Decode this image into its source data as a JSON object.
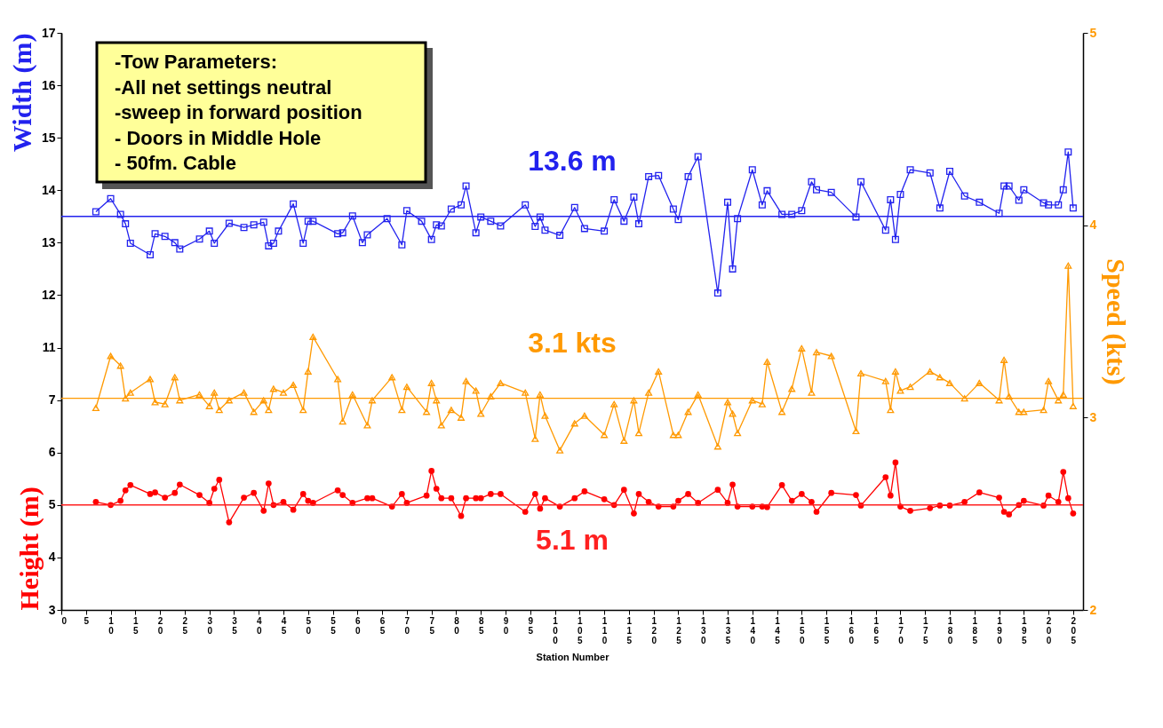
{
  "chart_data": {
    "type": "line",
    "xlabel": "Station Number",
    "ylabel": "Height (m)",
    "y2label": "Speed (kts)",
    "y3label": "Width (m)",
    "xlim": [
      0,
      207
    ],
    "xticks": [
      0,
      5,
      10,
      15,
      20,
      25,
      30,
      35,
      40,
      45,
      50,
      55,
      60,
      65,
      70,
      75,
      80,
      85,
      90,
      95,
      100,
      105,
      110,
      115,
      120,
      125,
      130,
      135,
      140,
      145,
      150,
      155,
      160,
      165,
      170,
      175,
      180,
      185,
      190,
      195,
      200,
      205
    ],
    "ylim": [
      3,
      14
    ],
    "yticks": [
      3,
      4,
      5,
      6,
      7
    ],
    "y2lim": [
      2,
      5
    ],
    "y2ticks": [
      2,
      3,
      4,
      5
    ],
    "y3lim": [
      6,
      17
    ],
    "y3ticks": [
      11,
      12,
      13,
      14,
      15,
      16,
      17
    ],
    "series": [
      {
        "axis": "y3",
        "color": "#2222ee",
        "marker": "square",
        "x": [
          7,
          10,
          12,
          13,
          14,
          18,
          19,
          21,
          23,
          24,
          28,
          30,
          31,
          34,
          37,
          39,
          41,
          42,
          43,
          44,
          47,
          49,
          50,
          51,
          56,
          57,
          59,
          61,
          62,
          66,
          69,
          70,
          73,
          75,
          76,
          77,
          79,
          81,
          82,
          84,
          85,
          87,
          89,
          94,
          96,
          97,
          98,
          101,
          104,
          106,
          110,
          112,
          114,
          116,
          117,
          119,
          121,
          124,
          125,
          127,
          129,
          133,
          135,
          136,
          137,
          140,
          142,
          143,
          146,
          148,
          150,
          152,
          153,
          156,
          161,
          162,
          167,
          168,
          169,
          170,
          172,
          176,
          178,
          180,
          183,
          186,
          190,
          191,
          192,
          194,
          195,
          199,
          200,
          202,
          203,
          204,
          205
        ],
        "values": [
          13.59,
          13.84,
          13.54,
          13.36,
          12.99,
          12.77,
          13.17,
          13.12,
          13.0,
          12.88,
          13.07,
          13.22,
          12.99,
          13.37,
          13.29,
          13.34,
          13.39,
          12.94,
          12.99,
          13.22,
          13.74,
          12.99,
          13.41,
          13.41,
          13.17,
          13.19,
          13.51,
          13.0,
          13.15,
          13.46,
          12.96,
          13.61,
          13.41,
          13.06,
          13.34,
          13.32,
          13.64,
          13.72,
          14.08,
          13.19,
          13.49,
          13.41,
          13.32,
          13.72,
          13.31,
          13.49,
          13.24,
          13.14,
          13.67,
          13.27,
          13.22,
          13.82,
          13.41,
          13.87,
          13.36,
          14.26,
          14.28,
          13.64,
          13.44,
          14.26,
          14.64,
          12.04,
          13.77,
          12.5,
          13.46,
          14.39,
          13.72,
          13.99,
          13.54,
          13.54,
          13.61,
          14.16,
          14.01,
          13.96,
          13.49,
          14.16,
          13.24,
          13.82,
          13.06,
          13.92,
          14.39,
          14.33,
          13.66,
          14.36,
          13.89,
          13.77,
          13.56,
          14.08,
          14.08,
          13.81,
          14.01,
          13.76,
          13.72,
          13.72,
          14.01,
          14.73,
          13.66
        ]
      },
      {
        "axis": "y2",
        "color": "#ff9900",
        "marker": "triangle",
        "x": [
          7,
          10,
          12,
          13,
          14,
          18,
          19,
          21,
          23,
          24,
          28,
          30,
          31,
          32,
          34,
          37,
          39,
          41,
          42,
          43,
          45,
          47,
          49,
          50,
          51,
          56,
          57,
          59,
          62,
          63,
          67,
          69,
          70,
          74,
          75,
          76,
          77,
          79,
          81,
          82,
          84,
          85,
          87,
          89,
          94,
          96,
          97,
          98,
          101,
          104,
          106,
          110,
          112,
          114,
          116,
          117,
          119,
          121,
          124,
          125,
          127,
          129,
          133,
          135,
          136,
          137,
          140,
          142,
          143,
          146,
          148,
          150,
          152,
          153,
          156,
          161,
          162,
          167,
          168,
          169,
          170,
          172,
          176,
          178,
          180,
          183,
          186,
          190,
          191,
          192,
          194,
          195,
          199,
          200,
          202,
          203,
          204,
          205
        ],
        "values": [
          3.05,
          3.32,
          3.27,
          3.1,
          3.13,
          3.2,
          3.08,
          3.07,
          3.21,
          3.09,
          3.12,
          3.06,
          3.13,
          3.04,
          3.09,
          3.13,
          3.03,
          3.09,
          3.04,
          3.15,
          3.13,
          3.17,
          3.04,
          3.24,
          3.42,
          3.2,
          2.98,
          3.12,
          2.96,
          3.09,
          3.21,
          3.04,
          3.16,
          3.03,
          3.18,
          3.09,
          2.96,
          3.04,
          3.0,
          3.19,
          3.14,
          3.02,
          3.11,
          3.18,
          3.13,
          2.89,
          3.12,
          3.01,
          2.83,
          2.97,
          3.01,
          2.91,
          3.07,
          2.88,
          3.09,
          2.92,
          3.13,
          3.24,
          2.91,
          2.91,
          3.03,
          3.12,
          2.85,
          3.08,
          3.02,
          2.92,
          3.09,
          3.07,
          3.29,
          3.03,
          3.15,
          3.36,
          3.13,
          3.34,
          3.32,
          2.93,
          3.23,
          3.19,
          3.04,
          3.24,
          3.14,
          3.16,
          3.24,
          3.21,
          3.18,
          3.1,
          3.18,
          3.09,
          3.3,
          3.11,
          3.03,
          3.03,
          3.04,
          3.19,
          3.09,
          3.12,
          3.79,
          3.06
        ]
      },
      {
        "axis": "y",
        "color": "#ff0000",
        "marker": "circle",
        "x": [
          7,
          10,
          12,
          13,
          14,
          18,
          19,
          21,
          23,
          24,
          28,
          30,
          31,
          32,
          34,
          37,
          39,
          41,
          42,
          43,
          45,
          47,
          49,
          50,
          51,
          56,
          57,
          59,
          62,
          63,
          67,
          69,
          70,
          74,
          75,
          76,
          77,
          79,
          81,
          82,
          84,
          85,
          87,
          89,
          94,
          96,
          97,
          98,
          101,
          104,
          106,
          110,
          112,
          114,
          116,
          117,
          119,
          121,
          124,
          125,
          127,
          129,
          133,
          135,
          136,
          137,
          140,
          142,
          143,
          146,
          148,
          150,
          152,
          153,
          156,
          161,
          162,
          167,
          168,
          169,
          170,
          172,
          176,
          178,
          180,
          183,
          186,
          190,
          191,
          192,
          194,
          195,
          199,
          200,
          202,
          203,
          204,
          205
        ],
        "values": [
          5.06,
          5.0,
          5.08,
          5.28,
          5.38,
          5.21,
          5.24,
          5.14,
          5.23,
          5.39,
          5.19,
          5.04,
          5.31,
          5.48,
          4.67,
          5.14,
          5.23,
          4.89,
          5.41,
          5.0,
          5.06,
          4.91,
          5.21,
          5.08,
          5.04,
          5.28,
          5.19,
          5.04,
          5.13,
          5.13,
          4.97,
          5.21,
          5.04,
          5.18,
          5.65,
          5.31,
          5.13,
          5.13,
          4.79,
          5.13,
          5.13,
          5.13,
          5.21,
          5.21,
          4.87,
          5.21,
          4.93,
          5.13,
          4.97,
          5.13,
          5.26,
          5.11,
          5.0,
          5.29,
          4.84,
          5.21,
          5.06,
          4.97,
          4.97,
          5.08,
          5.21,
          5.04,
          5.29,
          5.04,
          5.39,
          4.97,
          4.97,
          4.97,
          4.96,
          5.38,
          5.08,
          5.21,
          5.06,
          4.87,
          5.23,
          5.19,
          4.99,
          5.53,
          5.18,
          5.81,
          4.97,
          4.89,
          4.94,
          4.99,
          4.99,
          5.06,
          5.24,
          5.14,
          4.87,
          4.82,
          5.0,
          5.08,
          4.99,
          5.18,
          5.06,
          5.63,
          5.13,
          4.84
        ]
      }
    ],
    "ref_lines": [
      {
        "axis": "y3",
        "value": 13.5,
        "label": "13.6 m",
        "color": "#2222ee"
      },
      {
        "axis": "y2",
        "value": 3.1,
        "label": "3.1 kts",
        "color": "#ff9900"
      },
      {
        "axis": "y",
        "value": 5.0,
        "label": "5.1 m",
        "color": "#ff2020"
      }
    ],
    "annotations": [
      "-Tow Parameters:",
      "-All net settings neutral",
      "-sweep in forward position",
      "- Doors in Middle Hole",
      "- 50fm. Cable"
    ]
  }
}
